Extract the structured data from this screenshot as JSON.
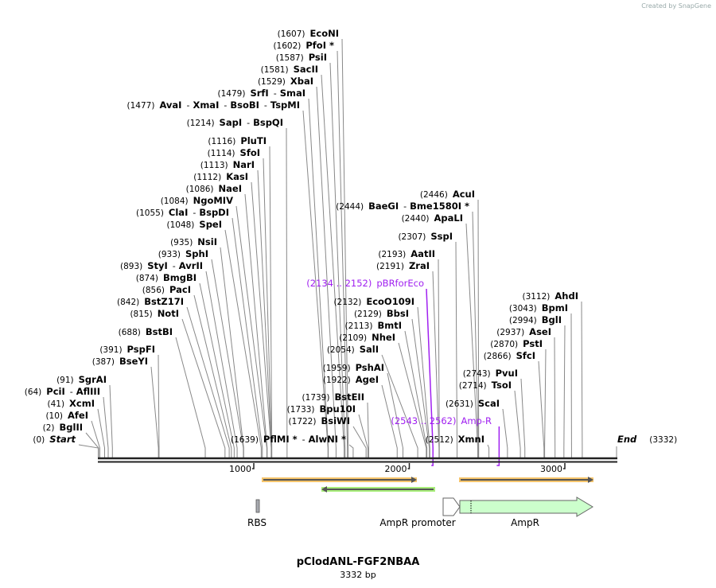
{
  "credit": "Created by SnapGene",
  "title": "pClodANL-FGF2NBAA",
  "size_label": "3332 bp",
  "length": 3332,
  "ticks": [
    "1000",
    "2000",
    "3000"
  ],
  "start": {
    "pos": "(0)",
    "label": "Start"
  },
  "end": {
    "pos": "(3332)",
    "label": "End"
  },
  "enzymes": [
    {
      "pos": "(1607)",
      "site": 1607,
      "names": [
        "EcoNI"
      ]
    },
    {
      "pos": "(1602)",
      "site": 1602,
      "names": [
        "PfoI *"
      ]
    },
    {
      "pos": "(1587)",
      "site": 1587,
      "names": [
        "PsiI"
      ]
    },
    {
      "pos": "(1581)",
      "site": 1581,
      "names": [
        "SacII"
      ]
    },
    {
      "pos": "(1529)",
      "site": 1529,
      "names": [
        "XbaI"
      ]
    },
    {
      "pos": "(1479)",
      "site": 1479,
      "names": [
        "SrfI",
        "SmaI"
      ]
    },
    {
      "pos": "(1477)",
      "site": 1477,
      "names": [
        "AvaI",
        "XmaI",
        "BsoBI",
        "TspMI"
      ]
    },
    {
      "pos": "(1214)",
      "site": 1214,
      "names": [
        "SapI",
        "BspQI"
      ]
    },
    {
      "pos": "(1116)",
      "site": 1116,
      "names": [
        "PluTI"
      ]
    },
    {
      "pos": "(1114)",
      "site": 1114,
      "names": [
        "SfoI"
      ]
    },
    {
      "pos": "(1113)",
      "site": 1113,
      "names": [
        "NarI"
      ]
    },
    {
      "pos": "(1112)",
      "site": 1112,
      "names": [
        "KasI"
      ]
    },
    {
      "pos": "(1086)",
      "site": 1086,
      "names": [
        "NaeI"
      ]
    },
    {
      "pos": "(1084)",
      "site": 1084,
      "names": [
        "NgoMIV"
      ]
    },
    {
      "pos": "(1055)",
      "site": 1055,
      "names": [
        "ClaI",
        "BspDI"
      ]
    },
    {
      "pos": "(1048)",
      "site": 1048,
      "names": [
        "SpeI"
      ]
    },
    {
      "pos": "(935)",
      "site": 935,
      "names": [
        "NsiI"
      ]
    },
    {
      "pos": "(933)",
      "site": 933,
      "names": [
        "SphI"
      ]
    },
    {
      "pos": "(893)",
      "site": 893,
      "names": [
        "StyI",
        "AvrII"
      ]
    },
    {
      "pos": "(874)",
      "site": 874,
      "names": [
        "BmgBI"
      ]
    },
    {
      "pos": "(856)",
      "site": 856,
      "names": [
        "PacI"
      ]
    },
    {
      "pos": "(842)",
      "site": 842,
      "names": [
        "BstZ17I"
      ]
    },
    {
      "pos": "(815)",
      "site": 815,
      "names": [
        "NotI"
      ]
    },
    {
      "pos": "(688)",
      "site": 688,
      "names": [
        "BstBI"
      ]
    },
    {
      "pos": "(391)",
      "site": 391,
      "names": [
        "PspFI"
      ]
    },
    {
      "pos": "(387)",
      "site": 387,
      "names": [
        "BseYI"
      ]
    },
    {
      "pos": "(91)",
      "site": 91,
      "names": [
        "SgrAI"
      ]
    },
    {
      "pos": "(64)",
      "site": 64,
      "names": [
        "PciI",
        "AflIII"
      ]
    },
    {
      "pos": "(41)",
      "site": 41,
      "names": [
        "XcmI"
      ]
    },
    {
      "pos": "(10)",
      "site": 10,
      "names": [
        "AfeI"
      ]
    },
    {
      "pos": "(2)",
      "site": 2,
      "names": [
        "BglII"
      ]
    },
    {
      "pos": "(1639)",
      "site": 1639,
      "names": [
        "PflMI *",
        "AlwNI *"
      ]
    },
    {
      "pos": "(1722)",
      "site": 1722,
      "names": [
        "BsiWI"
      ]
    },
    {
      "pos": "(1733)",
      "site": 1733,
      "names": [
        "Bpu10I"
      ]
    },
    {
      "pos": "(1739)",
      "site": 1739,
      "names": [
        "BstEII"
      ]
    },
    {
      "pos": "(1922)",
      "site": 1922,
      "names": [
        "AgeI"
      ]
    },
    {
      "pos": "(1959)",
      "site": 1959,
      "names": [
        "PshAI"
      ]
    },
    {
      "pos": "(2054)",
      "site": 2054,
      "names": [
        "SalI"
      ]
    },
    {
      "pos": "(2109)",
      "site": 2109,
      "names": [
        "NheI"
      ]
    },
    {
      "pos": "(2113)",
      "site": 2113,
      "names": [
        "BmtI"
      ]
    },
    {
      "pos": "(2129)",
      "site": 2129,
      "names": [
        "BbsI"
      ]
    },
    {
      "pos": "(2132)",
      "site": 2132,
      "names": [
        "EcoO109I"
      ]
    },
    {
      "pos": "(2191)",
      "site": 2191,
      "names": [
        "ZraI"
      ]
    },
    {
      "pos": "(2193)",
      "site": 2193,
      "names": [
        "AatII"
      ]
    },
    {
      "pos": "(2307)",
      "site": 2307,
      "names": [
        "SspI"
      ]
    },
    {
      "pos": "(2440)",
      "site": 2440,
      "names": [
        "ApaLI"
      ]
    },
    {
      "pos": "(2444)",
      "site": 2444,
      "names": [
        "BaeGI",
        "Bme1580I *"
      ]
    },
    {
      "pos": "(2446)",
      "site": 2446,
      "names": [
        "AcuI"
      ]
    },
    {
      "pos": "(2512)",
      "site": 2512,
      "names": [
        "XmnI"
      ]
    },
    {
      "pos": "(2631)",
      "site": 2631,
      "names": [
        "ScaI"
      ]
    },
    {
      "pos": "(2714)",
      "site": 2714,
      "names": [
        "TsoI"
      ]
    },
    {
      "pos": "(2743)",
      "site": 2743,
      "names": [
        "PvuI"
      ]
    },
    {
      "pos": "(2866)",
      "site": 2866,
      "names": [
        "SfcI"
      ]
    },
    {
      "pos": "(2870)",
      "site": 2870,
      "names": [
        "PstI"
      ]
    },
    {
      "pos": "(2937)",
      "site": 2937,
      "names": [
        "AseI"
      ]
    },
    {
      "pos": "(2994)",
      "site": 2994,
      "names": [
        "BglI"
      ]
    },
    {
      "pos": "(3043)",
      "site": 3043,
      "names": [
        "BpmI"
      ]
    },
    {
      "pos": "(3112)",
      "site": 3112,
      "names": [
        "AhdI"
      ]
    }
  ],
  "primers": [
    {
      "pos": "(2134 .. 2152)",
      "label": "pBRforEco",
      "site": 2152
    },
    {
      "pos": "(2543 .. 2562)",
      "label": "Amp-R",
      "site": 2562
    }
  ],
  "features": [
    {
      "label": "RBS"
    },
    {
      "label": "AmpR promoter"
    },
    {
      "label": "AmpR"
    }
  ],
  "colors": {
    "primer_purple": "#a020f0",
    "orf_orange": "#f5c46b",
    "orf_green": "#a8ee7a",
    "ampr_fill": "#ccffcc",
    "line_gray": "#888888"
  }
}
